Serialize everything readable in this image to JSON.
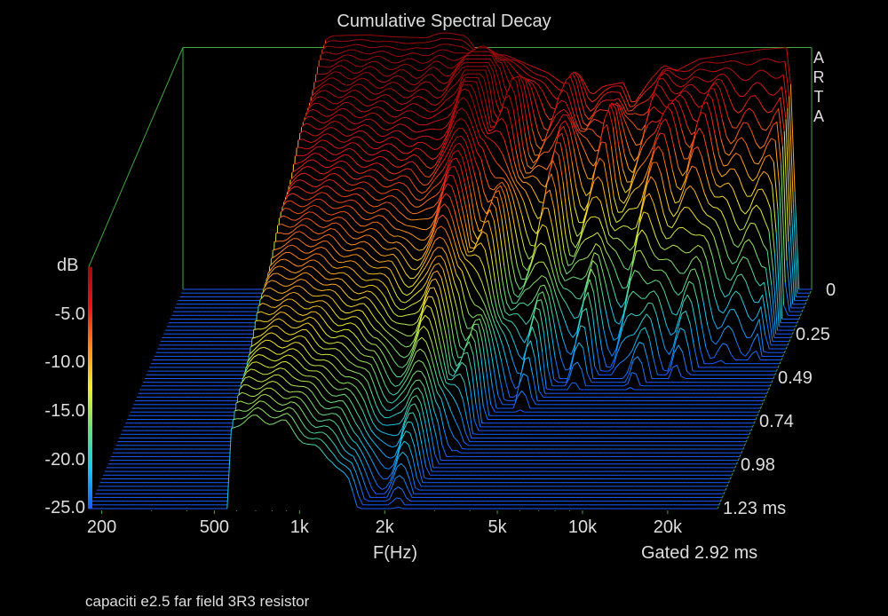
{
  "chart_data": {
    "type": "waterfall",
    "title": "Cumulative Spectral Decay",
    "brand": [
      "A",
      "R",
      "T",
      "A"
    ],
    "xlabel": "F(Hz)",
    "ylabel": "dB",
    "x_scale": "log",
    "x_ticks": [
      {
        "value": 200,
        "label": "200"
      },
      {
        "value": 500,
        "label": "500"
      },
      {
        "value": 1000,
        "label": "1k"
      },
      {
        "value": 2000,
        "label": "2k"
      },
      {
        "value": 5000,
        "label": "5k"
      },
      {
        "value": 10000,
        "label": "10k"
      },
      {
        "value": 20000,
        "label": "20k"
      }
    ],
    "xlim": [
      180,
      30000
    ],
    "y_ticks": [
      {
        "value": -5,
        "label": "-5.0"
      },
      {
        "value": -10,
        "label": "-10.0"
      },
      {
        "value": -15,
        "label": "-15.0"
      },
      {
        "value": -20,
        "label": "-20.0"
      },
      {
        "value": -25,
        "label": "-25.0"
      }
    ],
    "ylim": [
      -25,
      0
    ],
    "z_ticks": [
      {
        "value": 0,
        "label": "0"
      },
      {
        "value": 0.25,
        "label": "0.25"
      },
      {
        "value": 0.49,
        "label": "0.49"
      },
      {
        "value": 0.74,
        "label": "0.74"
      },
      {
        "value": 0.98,
        "label": "0.98"
      },
      {
        "value": 1.23,
        "label": "1.23 ms"
      }
    ],
    "zlim": [
      0,
      1.23
    ],
    "gated_label": "Gated 2.92 ms",
    "footnote": "capaciti e2.5 far field 3R3 resistor",
    "colormap": [
      "#1a5cff",
      "#18c8f0",
      "#6ee07a",
      "#f2ee30",
      "#ff8a1e",
      "#e41818",
      "#a00a0a"
    ],
    "frame_color": "#3fa83f",
    "spectrum_at_0ms": [
      [
        550,
        -25
      ],
      [
        560,
        0.5
      ],
      [
        600,
        1.2
      ],
      [
        800,
        1.3
      ],
      [
        1000,
        1.1
      ],
      [
        1300,
        1.0
      ],
      [
        1500,
        1.6
      ],
      [
        1800,
        1.2
      ],
      [
        2000,
        -0.6
      ],
      [
        2500,
        -0.8
      ],
      [
        3000,
        -1.8
      ],
      [
        3500,
        -2.6
      ],
      [
        4000,
        -3.8
      ],
      [
        4500,
        -2.5
      ],
      [
        5000,
        -5.0
      ],
      [
        5500,
        -4.0
      ],
      [
        6500,
        -3.6
      ],
      [
        7000,
        -6.0
      ],
      [
        8000,
        -3.5
      ],
      [
        9000,
        -1.8
      ],
      [
        10000,
        -2.4
      ],
      [
        12000,
        -1.2
      ],
      [
        15000,
        -0.8
      ],
      [
        20000,
        -0.2
      ],
      [
        25000,
        0.0
      ],
      [
        27000,
        -25
      ]
    ],
    "decay_profile": [
      [
        550,
        1.6
      ],
      [
        700,
        1.55
      ],
      [
        900,
        1.6
      ],
      [
        1100,
        1.8
      ],
      [
        1300,
        1.9
      ],
      [
        1500,
        2.2
      ],
      [
        1800,
        2.8
      ],
      [
        2000,
        3.0
      ],
      [
        2300,
        3.0
      ],
      [
        2600,
        3.2
      ],
      [
        3000,
        3.5
      ],
      [
        3500,
        4.2
      ],
      [
        4000,
        4.8
      ],
      [
        5000,
        5.5
      ],
      [
        6000,
        6.0
      ],
      [
        8000,
        6.6
      ],
      [
        10000,
        7.2
      ],
      [
        15000,
        7.8
      ],
      [
        20000,
        8.3
      ],
      [
        25000,
        8.6
      ]
    ],
    "resonances": [
      {
        "freq": 2200,
        "width": 0.05,
        "height": 9
      },
      {
        "freq": 3000,
        "width": 0.03,
        "height": 5
      },
      {
        "freq": 4500,
        "width": 0.04,
        "height": 7
      },
      {
        "freq": 6500,
        "width": 0.04,
        "height": 7
      },
      {
        "freq": 10000,
        "width": 0.05,
        "height": 8
      },
      {
        "freq": 14000,
        "width": 0.04,
        "height": 6
      }
    ]
  }
}
